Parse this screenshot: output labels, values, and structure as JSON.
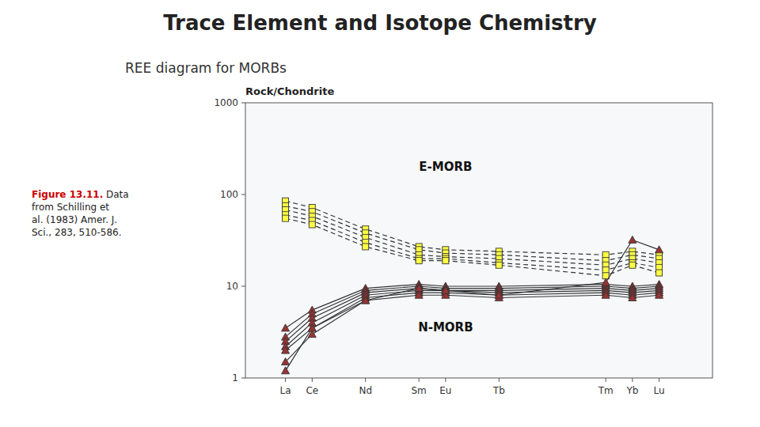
{
  "chart_data": {
    "type": "line",
    "title": "Trace Element and Isotope Chemistry",
    "subtitle": "REE diagram for MORBs",
    "caption": [
      {
        "text": "Figure 13.11.",
        "color": "#cc0000"
      },
      {
        "text": " Data\nfrom Schilling et\nal. (1983) Amer. J.\nSci., 283, 510-586."
      }
    ],
    "y_label": "Rock/Chondrite",
    "log": "y",
    "grid": false,
    "x": [
      57,
      58,
      60,
      62,
      63,
      65,
      69,
      70,
      71
    ],
    "xlim": [
      55.5,
      73
    ],
    "xticks": [
      {
        "value": 57,
        "label": "La"
      },
      {
        "value": 58,
        "label": "Ce"
      },
      {
        "value": 60,
        "label": "Nd"
      },
      {
        "value": 62,
        "label": "Sm"
      },
      {
        "value": 63,
        "label": "Eu"
      },
      {
        "value": 65,
        "label": "Tb"
      },
      {
        "value": 69,
        "label": "Tm"
      },
      {
        "value": 70,
        "label": "Yb"
      },
      {
        "value": 71,
        "label": "Lu"
      }
    ],
    "ylim": [
      1,
      1000
    ],
    "yticks": [
      1,
      10,
      100,
      1000
    ],
    "series": [
      {
        "color": "#ffff44",
        "marker": "square",
        "line_style": "dashed",
        "values": [
          85,
          72,
          42,
          27,
          25,
          24,
          22,
          24,
          22
        ]
      },
      {
        "color": "#ffff44",
        "marker": "square",
        "line_style": "dashed",
        "values": [
          75,
          65,
          38,
          25,
          23,
          22,
          19,
          22,
          20
        ]
      },
      {
        "color": "#ffff44",
        "marker": "square",
        "line_style": "dashed",
        "values": [
          68,
          58,
          34,
          22,
          21,
          20,
          17,
          20,
          18
        ]
      },
      {
        "color": "#ffff44",
        "marker": "square",
        "line_style": "dashed",
        "values": [
          60,
          52,
          30,
          20,
          20,
          18,
          15,
          18,
          16
        ]
      },
      {
        "color": "#ffff44",
        "marker": "square",
        "line_style": "dashed",
        "values": [
          55,
          47,
          27,
          19,
          19,
          17,
          13,
          17,
          14
        ]
      },
      {
        "color": "#993333",
        "marker": "triangle",
        "line_style": "solid",
        "values": [
          3.5,
          5.5,
          9.5,
          10.5,
          10.0,
          10.0,
          10.5,
          10.0,
          10.5
        ]
      },
      {
        "color": "#993333",
        "marker": "triangle",
        "line_style": "solid",
        "values": [
          2.8,
          5.0,
          9.0,
          10.0,
          9.5,
          9.5,
          10.0,
          9.5,
          10.0
        ]
      },
      {
        "color": "#993333",
        "marker": "triangle",
        "line_style": "solid",
        "values": [
          2.5,
          4.5,
          8.5,
          9.5,
          9.0,
          9.0,
          9.5,
          9.0,
          9.5
        ]
      },
      {
        "color": "#993333",
        "marker": "triangle",
        "line_style": "solid",
        "values": [
          2.2,
          4.0,
          8.0,
          9.0,
          9.0,
          8.5,
          9.0,
          8.5,
          9.0
        ]
      },
      {
        "color": "#993333",
        "marker": "triangle",
        "line_style": "solid",
        "values": [
          2.0,
          3.5,
          7.5,
          8.5,
          8.5,
          8.0,
          8.5,
          8.0,
          8.5
        ]
      },
      {
        "color": "#993333",
        "marker": "triangle",
        "line_style": "solid",
        "values": [
          1.5,
          3.0,
          7.0,
          8.0,
          8.0,
          7.5,
          8.0,
          7.5,
          8.0
        ]
      },
      {
        "color": "#993333",
        "marker": "triangle",
        "line_style": "solid",
        "values": [
          1.2,
          3.5,
          7.0,
          9.5,
          9.0,
          8.0,
          11.0,
          32,
          25
        ]
      }
    ],
    "annotations": [
      {
        "text": "E-MORB",
        "x": 63,
        "y": 200
      },
      {
        "text": "N-MORB",
        "x": 63,
        "y": 3.5
      }
    ]
  }
}
